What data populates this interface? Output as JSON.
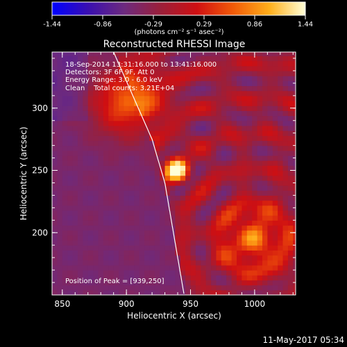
{
  "colorbar": {
    "ticks": [
      "-1.44",
      "-0.86",
      "-0.29",
      "0.29",
      "0.86",
      "1.44"
    ],
    "unit_label": "(photons cm⁻² s⁻¹ asec⁻²)",
    "range": [
      -1.44,
      1.44
    ],
    "stops": [
      "#0000ff",
      "#3a0fb0",
      "#6d2a7e",
      "#9b1f3a",
      "#cf0f12",
      "#f25a08",
      "#ffae1a",
      "#ffffd8"
    ]
  },
  "chart_data": {
    "type": "heatmap",
    "title": "Reconstructed RHESSI Image",
    "xlabel": "Heliocentric X (arcsec)",
    "ylabel": "Heliocentric Y (arcsec)",
    "xlim": [
      842,
      1032
    ],
    "ylim": [
      150,
      345
    ],
    "x_ticks": [
      "850",
      "900",
      "950",
      "1000"
    ],
    "y_ticks": [
      "200",
      "250",
      "300"
    ],
    "x_tick_values": [
      850,
      900,
      950,
      1000
    ],
    "y_tick_values": [
      200,
      250,
      300
    ],
    "annotations": [
      "18-Sep-2014 13:31:16.000 to 13:41:16.000",
      "Detectors: 3F 6F 9F, Att 0",
      "Energy Range: 3.0 - 6.0 keV",
      "Clean    Total counts: 3.21E+04"
    ],
    "peak_label": "Position of Peak = [939,250]",
    "peak": [
      939,
      250
    ],
    "limb_curve": [
      [
        890,
        345
      ],
      [
        920,
        275
      ],
      [
        930,
        240
      ],
      [
        945,
        150
      ]
    ],
    "sources": [
      {
        "x": 939,
        "y": 250,
        "value": 1.44
      },
      {
        "x": 900,
        "y": 305,
        "value": 0.75
      },
      {
        "x": 1000,
        "y": 195,
        "value": 0.55
      }
    ]
  },
  "footer": {
    "timestamp": "11-May-2017 05:34"
  }
}
